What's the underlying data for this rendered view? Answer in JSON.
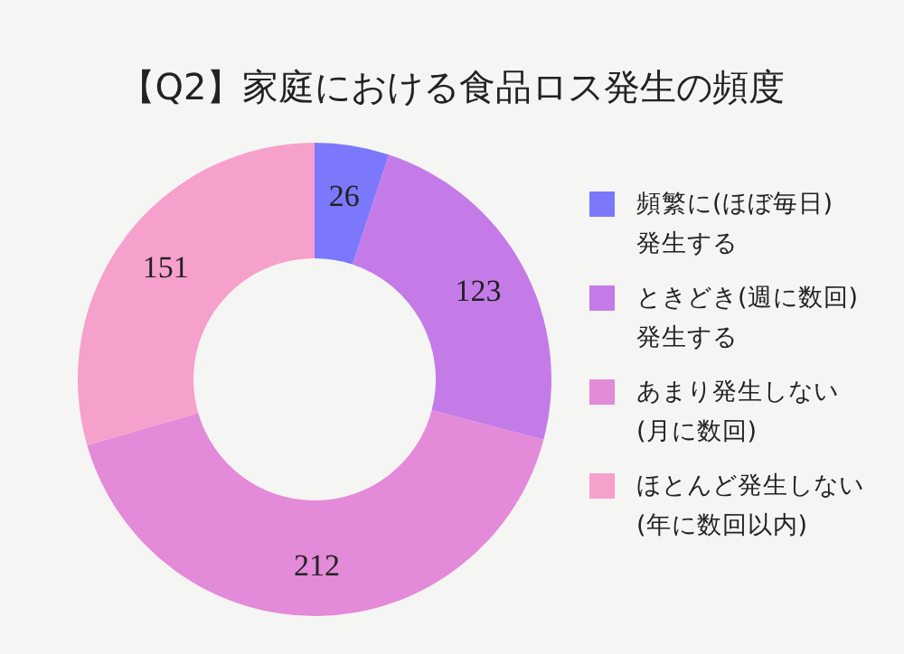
{
  "chart_data": {
    "type": "donut",
    "title": "【Q2】家庭における食品ロス発生の頻度",
    "categories": [
      "頻繁に(ほぼ毎日)\n発生する",
      "ときどき(週に数回)\n発生する",
      "あまり発生しない\n(月に数回)",
      "ほとんど発生しない\n(年に数回以内)"
    ],
    "values": [
      26,
      123,
      212,
      151
    ],
    "colors": [
      "#7b78fc",
      "#c47be8",
      "#e38ad8",
      "#f6a0cc"
    ],
    "data_labels": true,
    "legend": "right"
  }
}
